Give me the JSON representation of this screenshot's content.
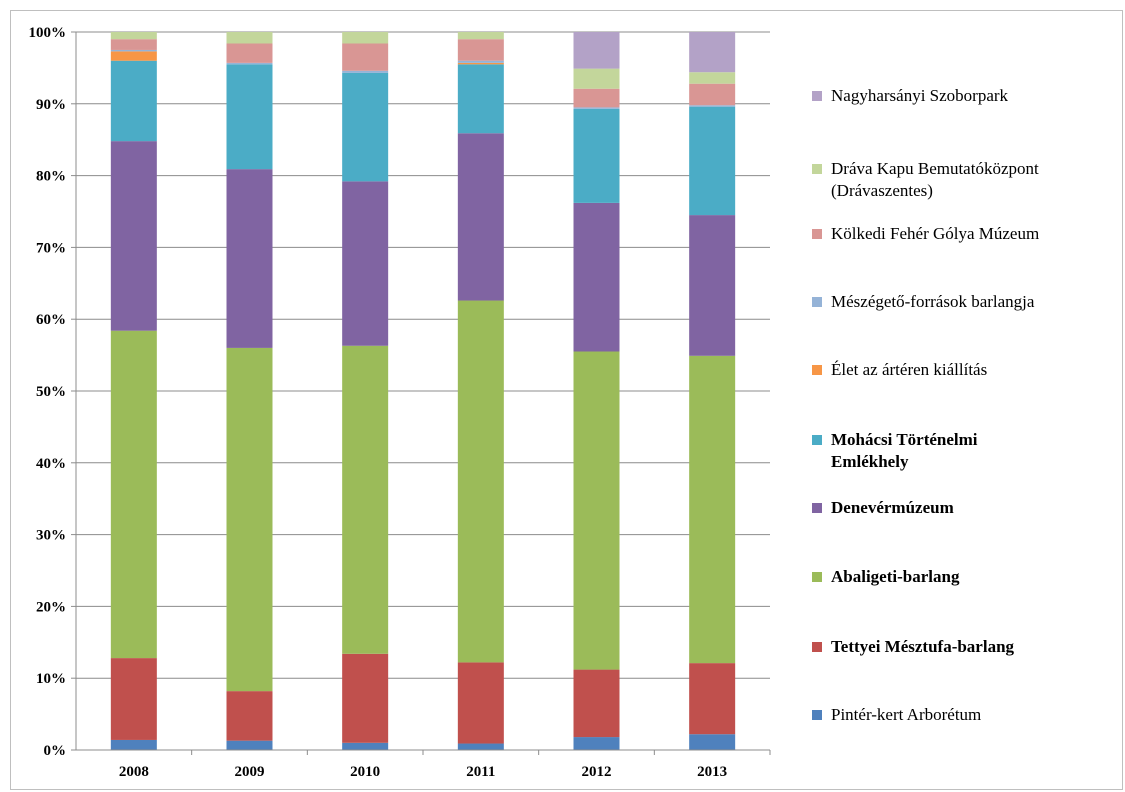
{
  "chart_data": {
    "type": "bar",
    "stacked": true,
    "percent": true,
    "title": "",
    "xlabel": "",
    "ylabel": "",
    "ylim": [
      0,
      100
    ],
    "y_ticks": [
      "0%",
      "10%",
      "20%",
      "30%",
      "40%",
      "50%",
      "60%",
      "70%",
      "80%",
      "90%",
      "100%"
    ],
    "grid": true,
    "legend_position": "right",
    "categories": [
      "2008",
      "2009",
      "2010",
      "2011",
      "2012",
      "2013"
    ],
    "series": [
      {
        "name": "Pintér-kert Arborétum",
        "color": "#4f81bd",
        "bold": false,
        "values": [
          1.4,
          1.3,
          1.0,
          0.9,
          1.8,
          2.2
        ]
      },
      {
        "name": "Tettyei Mésztufa-barlang",
        "color": "#c0504d",
        "bold": true,
        "values": [
          11.4,
          6.9,
          12.4,
          11.3,
          9.4,
          9.9
        ]
      },
      {
        "name": "Abaligeti-barlang",
        "color": "#9bbb59",
        "bold": true,
        "values": [
          45.6,
          47.8,
          42.9,
          50.4,
          44.3,
          42.8
        ]
      },
      {
        "name": "Denevérmúzeum",
        "color": "#8064a2",
        "bold": true,
        "values": [
          26.4,
          24.9,
          22.9,
          23.3,
          20.7,
          19.6
        ]
      },
      {
        "name": "Mohácsi Történelmi Emlékhely",
        "color": "#4bacc6",
        "bold": true,
        "values": [
          11.2,
          14.6,
          15.1,
          9.6,
          13.1,
          15.1
        ]
      },
      {
        "name": "Élet az ártéren kiállítás",
        "color": "#f79646",
        "bold": false,
        "values": [
          1.3,
          0.0,
          0.0,
          0.2,
          0.0,
          0.0
        ]
      },
      {
        "name": "Mészégető-források barlangja",
        "color": "#95b3d7",
        "bold": false,
        "values": [
          0.2,
          0.2,
          0.3,
          0.3,
          0.2,
          0.2
        ]
      },
      {
        "name": "Kölkedi Fehér Gólya Múzeum",
        "color": "#d99694",
        "bold": false,
        "values": [
          1.5,
          2.7,
          3.8,
          3.0,
          2.6,
          3.0
        ]
      },
      {
        "name": "Dráva Kapu Bemutatóközpont (Drávaszentes)",
        "color": "#c3d69b",
        "bold": false,
        "values": [
          1.0,
          1.6,
          1.6,
          1.0,
          2.8,
          1.6
        ]
      },
      {
        "name": "Nagyharsányi Szoborpark",
        "color": "#b3a2c7",
        "bold": false,
        "values": [
          0.0,
          0.0,
          0.0,
          0.0,
          5.1,
          5.6
        ]
      }
    ]
  }
}
